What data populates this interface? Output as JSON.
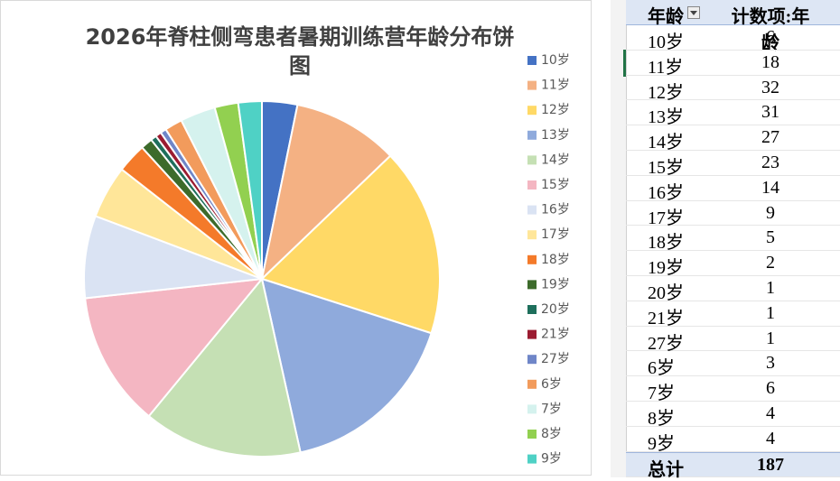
{
  "chart_data": {
    "type": "pie",
    "title": "2026年脊柱侧弯患者暑期训练营年龄分布饼图",
    "categories": [
      "10岁",
      "11岁",
      "12岁",
      "13岁",
      "14岁",
      "15岁",
      "16岁",
      "17岁",
      "18岁",
      "19岁",
      "20岁",
      "21岁",
      "27岁",
      "6岁",
      "7岁",
      "8岁",
      "9岁"
    ],
    "values": [
      6,
      18,
      32,
      31,
      27,
      23,
      14,
      9,
      5,
      2,
      1,
      1,
      1,
      3,
      6,
      4,
      4
    ],
    "colors": [
      "#4472c4",
      "#f4b183",
      "#ffd966",
      "#8faadc",
      "#c5e0b4",
      "#f4b6c2",
      "#dae3f3",
      "#ffe699",
      "#f47a2a",
      "#3d6b2b",
      "#1e6f5c",
      "#9b1c31",
      "#6f86c8",
      "#f29b5c",
      "#d5f2ee",
      "#92d050",
      "#4fd1c5"
    ],
    "legend": "right"
  },
  "table": {
    "headers": [
      "年龄",
      "计数项:年龄"
    ],
    "total_label": "总计",
    "total": 187
  }
}
